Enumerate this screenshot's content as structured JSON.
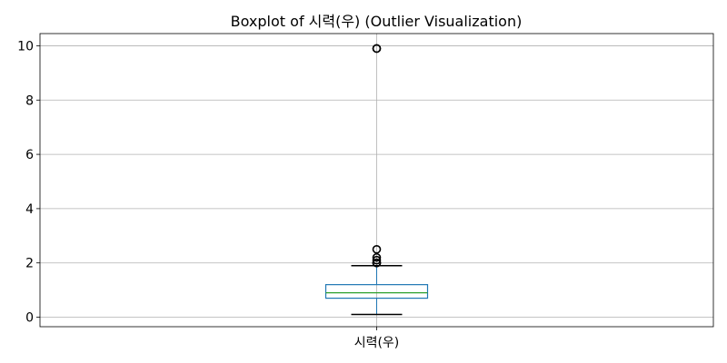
{
  "chart_data": {
    "type": "boxplot",
    "title": "Boxplot of 시력(우) (Outlier Visualization)",
    "xlabel": "",
    "ylabel": "",
    "categories": [
      "시력(우)"
    ],
    "ylim": [
      -0.35,
      10.45
    ],
    "yticks": [
      0,
      2,
      4,
      6,
      8,
      10
    ],
    "grid": true,
    "boxes": [
      {
        "category": "시력(우)",
        "whisker_low": 0.1,
        "q1": 0.7,
        "median": 0.9,
        "q3": 1.2,
        "whisker_high": 1.9,
        "outliers": [
          2.0,
          2.0,
          2.0,
          2.1,
          2.2,
          2.5,
          9.9,
          9.9
        ]
      }
    ],
    "colors": {
      "box": "#1f77b4",
      "median": "#2ca02c",
      "whisker": "#000000",
      "cap": "#000000",
      "outlier": "#000000",
      "grid": "#b0b0b0"
    }
  }
}
